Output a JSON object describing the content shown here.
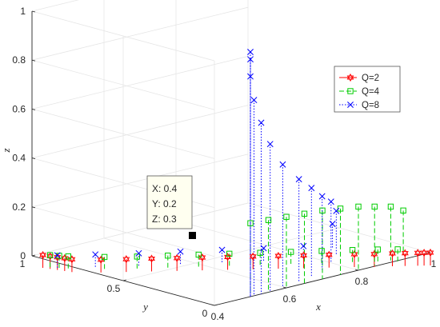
{
  "chart_data": {
    "type": "scatter",
    "projection": "3d",
    "grid": true,
    "legend_position": "top-right",
    "xlabel": "x",
    "ylabel": "y",
    "zlabel": "z",
    "xlim": [
      0.4,
      1
    ],
    "ylim": [
      0,
      1
    ],
    "zlim": [
      0,
      1
    ],
    "x_ticks": [
      "0.4",
      "0.6",
      "0.8",
      "1"
    ],
    "y_ticks": [
      "0",
      "0.5",
      "1"
    ],
    "z_ticks": [
      "0",
      "0.2",
      "0.4",
      "0.6",
      "0.8",
      "1"
    ],
    "series": [
      {
        "name": "Q=2",
        "color": "#ff0000",
        "marker": "hexagram",
        "line": "solid",
        "points": [
          [
            0.42,
            0.98,
            0
          ],
          [
            0.425,
            0.95,
            0
          ],
          [
            0.43,
            0.92,
            0
          ],
          [
            0.435,
            0.89,
            0
          ],
          [
            0.44,
            0.86,
            0
          ],
          [
            0.48,
            0.78,
            0
          ],
          [
            0.52,
            0.72,
            0
          ],
          [
            0.56,
            0.66,
            0
          ],
          [
            0.6,
            0.6,
            0
          ],
          [
            0.64,
            0.54,
            0
          ],
          [
            0.68,
            0.48,
            0
          ],
          [
            0.72,
            0.42,
            0
          ],
          [
            0.76,
            0.36,
            0
          ],
          [
            0.8,
            0.3,
            0
          ],
          [
            0.84,
            0.24,
            0
          ],
          [
            0.88,
            0.18,
            0
          ],
          [
            0.91,
            0.13,
            0
          ],
          [
            0.94,
            0.09,
            0
          ],
          [
            0.96,
            0.06,
            0
          ],
          [
            0.98,
            0.03,
            0
          ],
          [
            0.99,
            0.015,
            0
          ],
          [
            1.0,
            0.0,
            0
          ]
        ]
      },
      {
        "name": "Q=4",
        "color": "#00cc00",
        "marker": "square",
        "line": "dashed",
        "points": [
          [
            0.43,
            0.96,
            0
          ],
          [
            0.44,
            0.93,
            0
          ],
          [
            0.45,
            0.9,
            0
          ],
          [
            0.5,
            0.8,
            0
          ],
          [
            0.55,
            0.72,
            0
          ],
          [
            0.6,
            0.65,
            0
          ],
          [
            0.65,
            0.58,
            0
          ],
          [
            0.7,
            0.51,
            0
          ],
          [
            0.75,
            0.44,
            0
          ],
          [
            0.8,
            0.37,
            0
          ],
          [
            0.85,
            0.3,
            0
          ],
          [
            0.9,
            0.23,
            0
          ],
          [
            0.94,
            0.17,
            0
          ],
          [
            0.97,
            0.12,
            0
          ],
          [
            0.95,
            0.05,
            0.18
          ],
          [
            0.9,
            0.02,
            0.22
          ],
          [
            0.85,
            0.01,
            0.24
          ],
          [
            0.8,
            0.0,
            0.26
          ],
          [
            0.75,
            0.0,
            0.27
          ],
          [
            0.7,
            0.0,
            0.28
          ],
          [
            0.65,
            0.0,
            0.285
          ],
          [
            0.6,
            0.0,
            0.29
          ],
          [
            0.55,
            0.0,
            0.295
          ],
          [
            0.5,
            0.0,
            0.3
          ]
        ]
      },
      {
        "name": "Q=8",
        "color": "#0000ff",
        "marker": "x",
        "line": "dotted",
        "points": [
          [
            0.44,
            0.94,
            0
          ],
          [
            0.5,
            0.85,
            0
          ],
          [
            0.57,
            0.75,
            0
          ],
          [
            0.64,
            0.66,
            0
          ],
          [
            0.71,
            0.57,
            0
          ],
          [
            0.78,
            0.48,
            0
          ],
          [
            0.85,
            0.4,
            0
          ],
          [
            0.88,
            0.3,
            0.1
          ],
          [
            0.85,
            0.22,
            0.18
          ],
          [
            0.8,
            0.15,
            0.25
          ],
          [
            0.75,
            0.1,
            0.3
          ],
          [
            0.7,
            0.06,
            0.36
          ],
          [
            0.65,
            0.03,
            0.42
          ],
          [
            0.6,
            0.02,
            0.5
          ],
          [
            0.56,
            0.01,
            0.6
          ],
          [
            0.53,
            0.0,
            0.7
          ],
          [
            0.51,
            0.0,
            0.8
          ],
          [
            0.5,
            0.0,
            0.9
          ],
          [
            0.5,
            0.0,
            0.97
          ],
          [
            0.5,
            0.0,
            1.0
          ]
        ]
      }
    ],
    "datatip": {
      "lines": [
        "X: 0.4",
        "Y: 0.2",
        "Z: 0.3"
      ]
    }
  }
}
